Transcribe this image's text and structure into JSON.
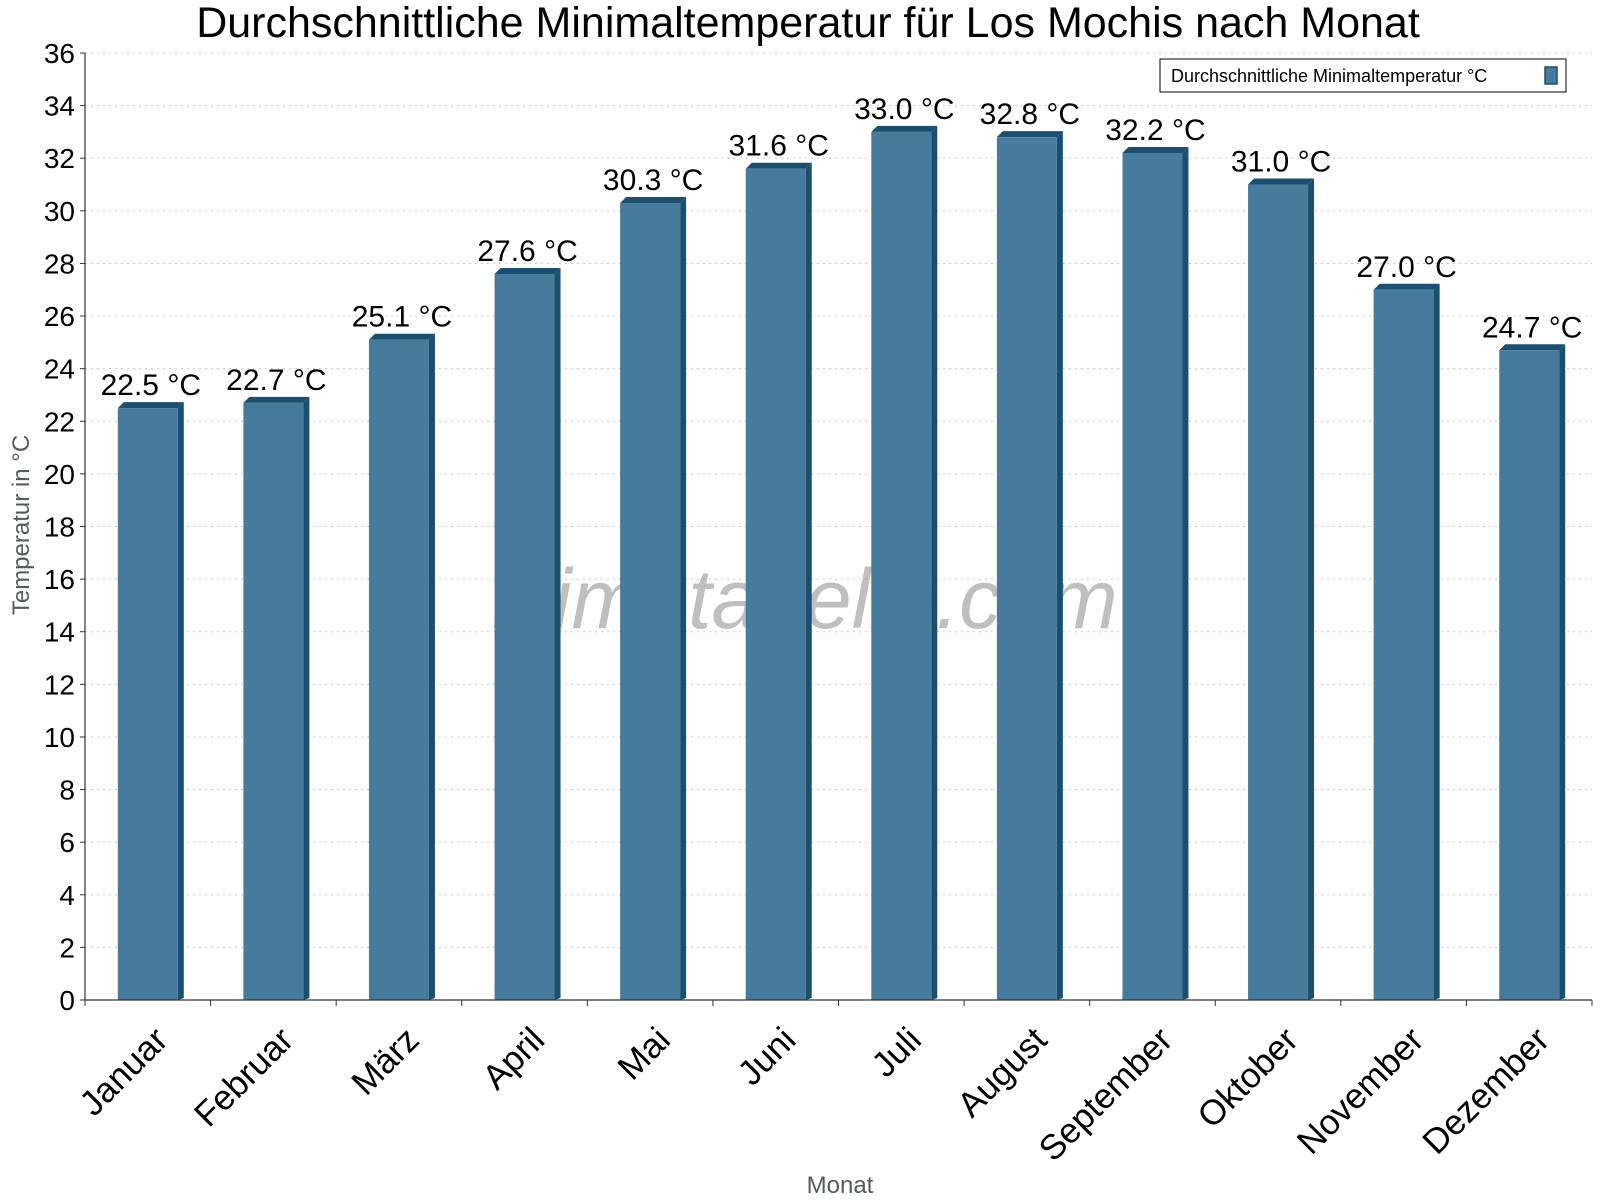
{
  "chart_data": {
    "type": "bar",
    "title": "Durchschnittliche Minimaltemperatur für Los Mochis nach Monat",
    "xlabel": "Monat",
    "ylabel": "Temperatur in °C",
    "categories": [
      "Januar",
      "Februar",
      "März",
      "April",
      "Mai",
      "Juni",
      "Juli",
      "August",
      "September",
      "Oktober",
      "November",
      "Dezember"
    ],
    "series": [
      {
        "name": "Durchschnittliche Minimaltemperatur °C",
        "values": [
          22.5,
          22.7,
          25.1,
          27.6,
          30.3,
          31.6,
          33.0,
          32.8,
          32.2,
          31.0,
          27.0,
          24.7
        ],
        "labels": [
          "22.5 °C",
          "22.7 °C",
          "25.1 °C",
          "27.6 °C",
          "30.3 °C",
          "31.6 °C",
          "33.0 °C",
          "32.8 °C",
          "32.2 °C",
          "31.0 °C",
          "27.0 °C",
          "24.7 °C"
        ],
        "color": "#467b9e",
        "shade_color": "#1c4e6e"
      }
    ],
    "ylim": [
      0,
      36
    ],
    "ytick_step": 2,
    "grid": true,
    "legend_position": "top-right",
    "watermark": "klimatabelle.com"
  }
}
